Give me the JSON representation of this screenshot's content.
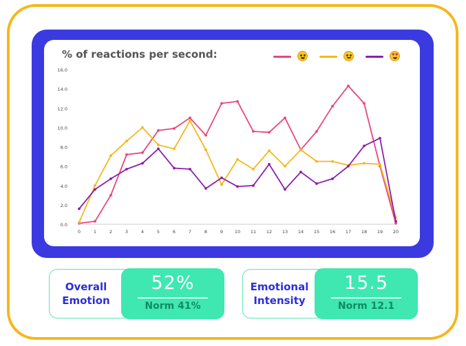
{
  "chart_data": {
    "type": "line",
    "title": "% of reactions per second:",
    "x": [
      0,
      1,
      2,
      3,
      4,
      5,
      6,
      7,
      8,
      9,
      10,
      11,
      12,
      13,
      14,
      15,
      16,
      17,
      18,
      19,
      20
    ],
    "y_ticks": [
      "0.0",
      "2.0",
      "4.0",
      "6.0",
      "8.0",
      "10.0",
      "12.0",
      "14.0",
      "16.0"
    ],
    "ylim": [
      0,
      16
    ],
    "grid": false,
    "legend_position": "top-right",
    "series": [
      {
        "icon": "tears-of-joy-emoji-icon",
        "color": "#e8467c",
        "values": [
          0.1,
          0.3,
          3.0,
          7.2,
          7.4,
          9.7,
          9.9,
          11.0,
          9.2,
          12.5,
          12.7,
          9.6,
          9.5,
          11.0,
          7.7,
          9.6,
          12.2,
          14.3,
          12.5,
          6.0,
          0.1
        ]
      },
      {
        "icon": "smiling-emoji-icon",
        "color": "#f5b71c",
        "values": [
          0.2,
          4.0,
          7.1,
          8.6,
          10.0,
          8.2,
          7.8,
          10.7,
          7.7,
          4.1,
          6.7,
          5.7,
          7.6,
          6.0,
          7.7,
          6.5,
          6.5,
          6.1,
          6.3,
          6.2,
          0.7
        ]
      },
      {
        "icon": "heart-eyes-emoji-icon",
        "color": "#8b1fa8",
        "values": [
          1.6,
          3.6,
          4.7,
          5.7,
          6.3,
          7.8,
          5.8,
          5.7,
          3.7,
          4.8,
          3.9,
          4.0,
          6.2,
          3.6,
          5.4,
          4.2,
          4.7,
          6.0,
          8.1,
          8.9,
          0.3
        ]
      }
    ]
  },
  "stats": [
    {
      "label_line1": "Overall",
      "label_line2": "Emotion",
      "value": "52%",
      "norm": "Norm 41%"
    },
    {
      "label_line1": "Emotional",
      "label_line2": "Intensity",
      "value": "15.5",
      "norm": "Norm 12.1"
    }
  ],
  "colors": {
    "frame": "#f5b71c",
    "panel": "#3a3ae0",
    "accent": "#3ee8b0",
    "label": "#2e2ed8"
  }
}
